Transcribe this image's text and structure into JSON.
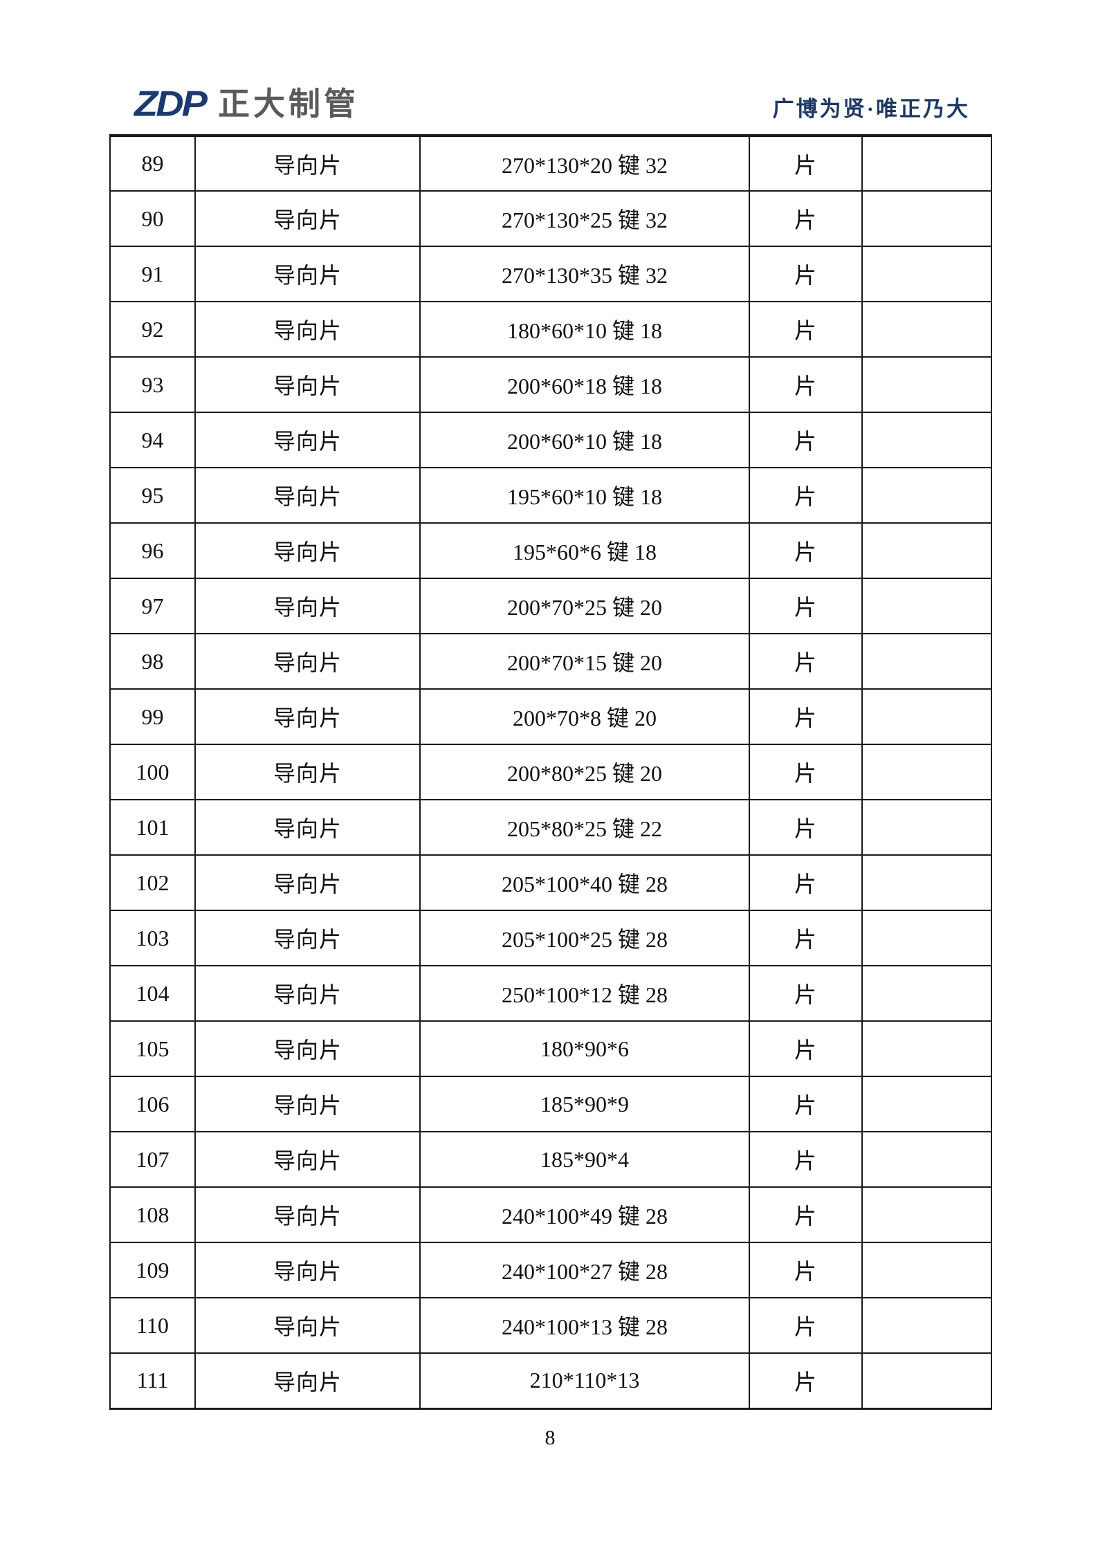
{
  "header": {
    "logo_text": "ZDP",
    "logo_company": "正大制管",
    "slogan": "广博为贤·唯正乃大"
  },
  "table": {
    "rows": [
      {
        "no": "89",
        "name": "导向片",
        "spec": "270*130*20 键 32",
        "unit": "片",
        "note": ""
      },
      {
        "no": "90",
        "name": "导向片",
        "spec": "270*130*25 键 32",
        "unit": "片",
        "note": ""
      },
      {
        "no": "91",
        "name": "导向片",
        "spec": "270*130*35 键 32",
        "unit": "片",
        "note": ""
      },
      {
        "no": "92",
        "name": "导向片",
        "spec": "180*60*10 键 18",
        "unit": "片",
        "note": ""
      },
      {
        "no": "93",
        "name": "导向片",
        "spec": "200*60*18 键 18",
        "unit": "片",
        "note": ""
      },
      {
        "no": "94",
        "name": "导向片",
        "spec": "200*60*10 键 18",
        "unit": "片",
        "note": ""
      },
      {
        "no": "95",
        "name": "导向片",
        "spec": "195*60*10 键 18",
        "unit": "片",
        "note": ""
      },
      {
        "no": "96",
        "name": "导向片",
        "spec": "195*60*6 键 18",
        "unit": "片",
        "note": ""
      },
      {
        "no": "97",
        "name": "导向片",
        "spec": "200*70*25 键 20",
        "unit": "片",
        "note": ""
      },
      {
        "no": "98",
        "name": "导向片",
        "spec": "200*70*15 键 20",
        "unit": "片",
        "note": ""
      },
      {
        "no": "99",
        "name": "导向片",
        "spec": "200*70*8 键 20",
        "unit": "片",
        "note": ""
      },
      {
        "no": "100",
        "name": "导向片",
        "spec": "200*80*25 键 20",
        "unit": "片",
        "note": ""
      },
      {
        "no": "101",
        "name": "导向片",
        "spec": "205*80*25 键 22",
        "unit": "片",
        "note": ""
      },
      {
        "no": "102",
        "name": "导向片",
        "spec": "205*100*40 键 28",
        "unit": "片",
        "note": ""
      },
      {
        "no": "103",
        "name": "导向片",
        "spec": "205*100*25 键 28",
        "unit": "片",
        "note": ""
      },
      {
        "no": "104",
        "name": "导向片",
        "spec": "250*100*12 键 28",
        "unit": "片",
        "note": ""
      },
      {
        "no": "105",
        "name": "导向片",
        "spec": "180*90*6",
        "unit": "片",
        "note": ""
      },
      {
        "no": "106",
        "name": "导向片",
        "spec": "185*90*9",
        "unit": "片",
        "note": ""
      },
      {
        "no": "107",
        "name": "导向片",
        "spec": "185*90*4",
        "unit": "片",
        "note": ""
      },
      {
        "no": "108",
        "name": "导向片",
        "spec": "240*100*49 键 28",
        "unit": "片",
        "note": ""
      },
      {
        "no": "109",
        "name": "导向片",
        "spec": "240*100*27 键 28",
        "unit": "片",
        "note": ""
      },
      {
        "no": "110",
        "name": "导向片",
        "spec": "240*100*13 键 28",
        "unit": "片",
        "note": ""
      },
      {
        "no": "111",
        "name": "导向片",
        "spec": "210*110*13",
        "unit": "片",
        "note": ""
      }
    ]
  },
  "footer": {
    "page_number": "8"
  },
  "colors": {
    "logo_navy": "#1b3a6d",
    "logo_gray": "#595a5c",
    "slogan_navy": "#1f3864",
    "table_border": "#1a1a1a",
    "page_background": "#ffffff"
  }
}
